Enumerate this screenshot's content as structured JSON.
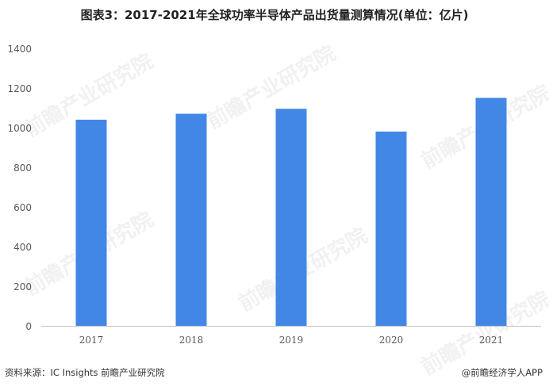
{
  "title": "图表3：2017-2021年全球功率半导体产品出货量测算情况(单位：亿片)",
  "footer": {
    "source": "资料来源：IC Insights 前瞻产业研究院",
    "credit": "@前瞻经济学人APP"
  },
  "watermark": "前瞻产业研究院",
  "colors": {
    "bar": "#4287e6",
    "grid": "#d9d9d9",
    "axis": "#bfbfbf"
  },
  "chart_data": {
    "type": "bar",
    "categories": [
      "2017",
      "2018",
      "2019",
      "2020",
      "2021"
    ],
    "values": [
      1040,
      1070,
      1095,
      980,
      1150
    ],
    "ylim": [
      0,
      1400
    ],
    "yticks": [
      0,
      200,
      400,
      600,
      800,
      1000,
      1200,
      1400
    ],
    "grid": false,
    "legend": "none"
  }
}
